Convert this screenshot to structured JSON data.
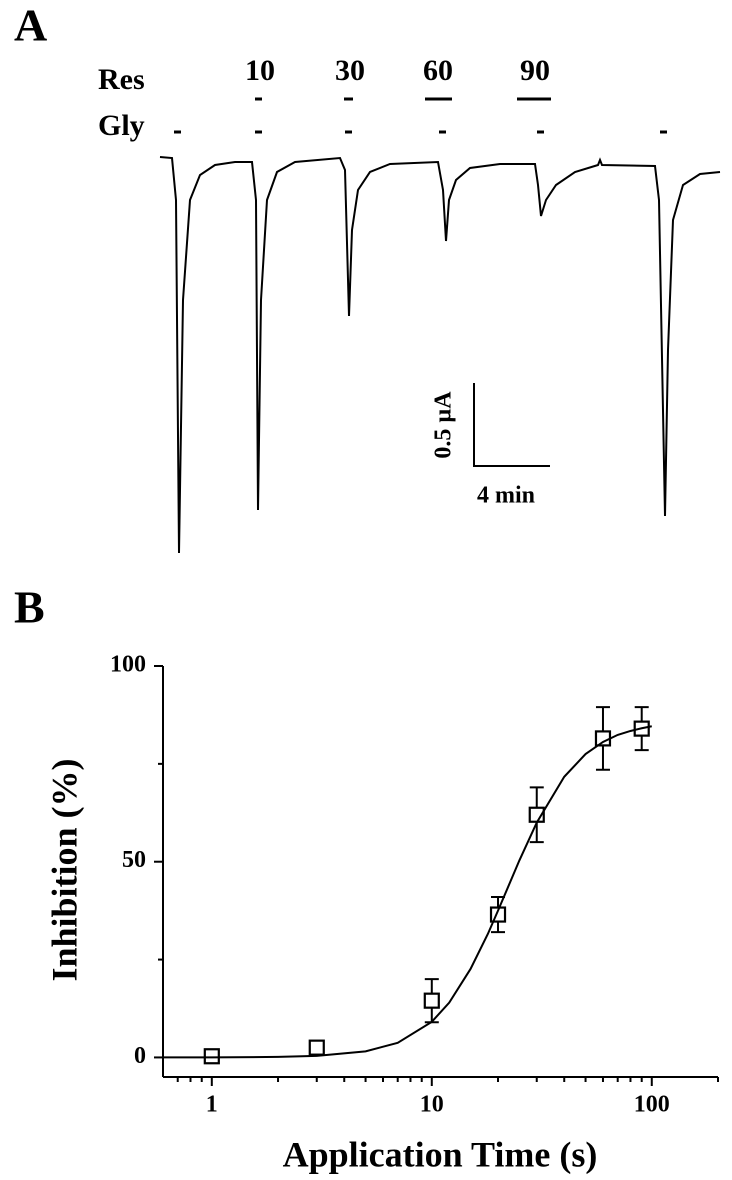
{
  "panel_a": {
    "label": "A",
    "res_label": "Res",
    "res_times": [
      "10",
      "30",
      "60",
      "90"
    ],
    "gly_label": "Gly",
    "scale_y": "0.5 µA",
    "scale_x": "4 min"
  },
  "chart_data": {
    "type": "scatter",
    "panel_label": "B",
    "xlabel": "Application Time (s)",
    "ylabel": "Inhibition (%)",
    "xscale": "log",
    "xlim": [
      0.6,
      200
    ],
    "xticks": [
      1,
      10,
      100
    ],
    "xminorticks": [
      0.7,
      0.8,
      0.9,
      2,
      3,
      4,
      5,
      6,
      7,
      8,
      9,
      20,
      30,
      40,
      50,
      60,
      70,
      80,
      90,
      200
    ],
    "ylim": [
      -5,
      100
    ],
    "yticks": [
      0,
      50,
      100
    ],
    "yminorticks": [
      25,
      75
    ],
    "color": "#000000",
    "series": [
      {
        "marker": "square",
        "x": [
          1,
          3,
          10,
          20,
          30,
          60,
          90
        ],
        "values": [
          0.3,
          2.5,
          14.5,
          36.5,
          62,
          81.5,
          84
        ],
        "errors": [
          1,
          1.5,
          5.5,
          4.5,
          7,
          8,
          5.5
        ]
      },
      {
        "marker": "line",
        "x": [
          0.6,
          1,
          2,
          3,
          5,
          7,
          10,
          12,
          15,
          18,
          20,
          25,
          30,
          40,
          50,
          60,
          70,
          80,
          90,
          100
        ],
        "values": [
          0,
          0.02,
          0.13,
          0.4,
          1.55,
          3.74,
          9.1,
          14,
          22.6,
          31.6,
          37.5,
          50.3,
          60,
          71.7,
          77.5,
          80.6,
          82.4,
          83.4,
          84.1,
          84.6
        ]
      }
    ]
  }
}
